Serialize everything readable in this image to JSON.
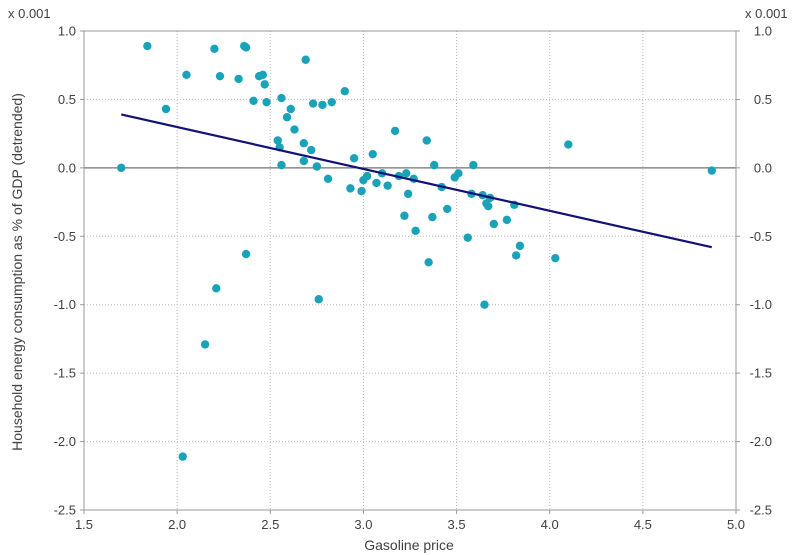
{
  "chart_data": {
    "type": "scatter",
    "title": "",
    "xlabel": "Gasoline price",
    "ylabel": "Household energy consumption as % of GDP (detrended)",
    "y_scale_label_left": "x 0.001",
    "y_scale_label_right": "x 0.001",
    "xlim": [
      1.5,
      5.0
    ],
    "ylim": [
      -2.5,
      1.0
    ],
    "x_ticks": [
      1.5,
      2.0,
      2.5,
      3.0,
      3.5,
      4.0,
      4.5,
      5.0
    ],
    "x_tick_labels": [
      "1.5",
      "2.0",
      "2.5",
      "3.0",
      "3.5",
      "4.0",
      "4.5",
      "5.0"
    ],
    "y_ticks": [
      1.0,
      0.5,
      0.0,
      -0.5,
      -1.0,
      -1.5,
      -2.0,
      -2.5
    ],
    "y_tick_labels": [
      "1.0",
      "0.5",
      "0.0",
      "-0.5",
      "-1.0",
      "-1.5",
      "-2.0",
      "-2.5"
    ],
    "grid": true,
    "zero_line": 0.0,
    "colors": {
      "points": "#1aa3b8",
      "trend": "#111177",
      "grid": "#b8b8b8",
      "zero": "#707070",
      "text": "#404040"
    },
    "points": [
      [
        1.7,
        0.0
      ],
      [
        1.84,
        0.89
      ],
      [
        1.94,
        0.43
      ],
      [
        2.03,
        -2.11
      ],
      [
        2.05,
        0.68
      ],
      [
        2.15,
        -1.29
      ],
      [
        2.2,
        0.87
      ],
      [
        2.21,
        -0.88
      ],
      [
        2.23,
        0.67
      ],
      [
        2.33,
        0.65
      ],
      [
        2.36,
        0.89
      ],
      [
        2.37,
        0.88
      ],
      [
        2.37,
        -0.63
      ],
      [
        2.41,
        0.49
      ],
      [
        2.44,
        0.67
      ],
      [
        2.46,
        0.68
      ],
      [
        2.47,
        0.61
      ],
      [
        2.48,
        0.48
      ],
      [
        2.54,
        0.2
      ],
      [
        2.55,
        0.15
      ],
      [
        2.56,
        0.02
      ],
      [
        2.56,
        0.51
      ],
      [
        2.59,
        0.37
      ],
      [
        2.61,
        0.43
      ],
      [
        2.63,
        0.28
      ],
      [
        2.68,
        0.05
      ],
      [
        2.68,
        0.18
      ],
      [
        2.69,
        0.79
      ],
      [
        2.72,
        0.13
      ],
      [
        2.73,
        0.47
      ],
      [
        2.75,
        0.01
      ],
      [
        2.76,
        -0.96
      ],
      [
        2.78,
        0.46
      ],
      [
        2.81,
        -0.08
      ],
      [
        2.83,
        0.48
      ],
      [
        2.9,
        0.56
      ],
      [
        2.93,
        -0.15
      ],
      [
        2.95,
        0.07
      ],
      [
        2.99,
        -0.17
      ],
      [
        3.0,
        -0.09
      ],
      [
        3.02,
        -0.06
      ],
      [
        3.05,
        0.1
      ],
      [
        3.07,
        -0.11
      ],
      [
        3.1,
        -0.04
      ],
      [
        3.13,
        -0.13
      ],
      [
        3.17,
        0.27
      ],
      [
        3.19,
        -0.06
      ],
      [
        3.22,
        -0.35
      ],
      [
        3.23,
        -0.04
      ],
      [
        3.24,
        -0.19
      ],
      [
        3.27,
        -0.08
      ],
      [
        3.28,
        -0.46
      ],
      [
        3.34,
        0.2
      ],
      [
        3.35,
        -0.69
      ],
      [
        3.37,
        -0.36
      ],
      [
        3.38,
        0.02
      ],
      [
        3.42,
        -0.14
      ],
      [
        3.45,
        -0.3
      ],
      [
        3.49,
        -0.07
      ],
      [
        3.51,
        -0.04
      ],
      [
        3.56,
        -0.51
      ],
      [
        3.58,
        -0.19
      ],
      [
        3.59,
        0.02
      ],
      [
        3.64,
        -0.2
      ],
      [
        3.65,
        -1.0
      ],
      [
        3.66,
        -0.26
      ],
      [
        3.67,
        -0.28
      ],
      [
        3.68,
        -0.22
      ],
      [
        3.7,
        -0.41
      ],
      [
        3.77,
        -0.38
      ],
      [
        3.81,
        -0.27
      ],
      [
        3.82,
        -0.64
      ],
      [
        3.84,
        -0.57
      ],
      [
        4.03,
        -0.66
      ],
      [
        4.1,
        0.17
      ],
      [
        4.87,
        -0.02
      ]
    ],
    "trend_line": {
      "x": [
        1.7,
        4.87
      ],
      "y": [
        0.39,
        -0.58
      ]
    }
  }
}
